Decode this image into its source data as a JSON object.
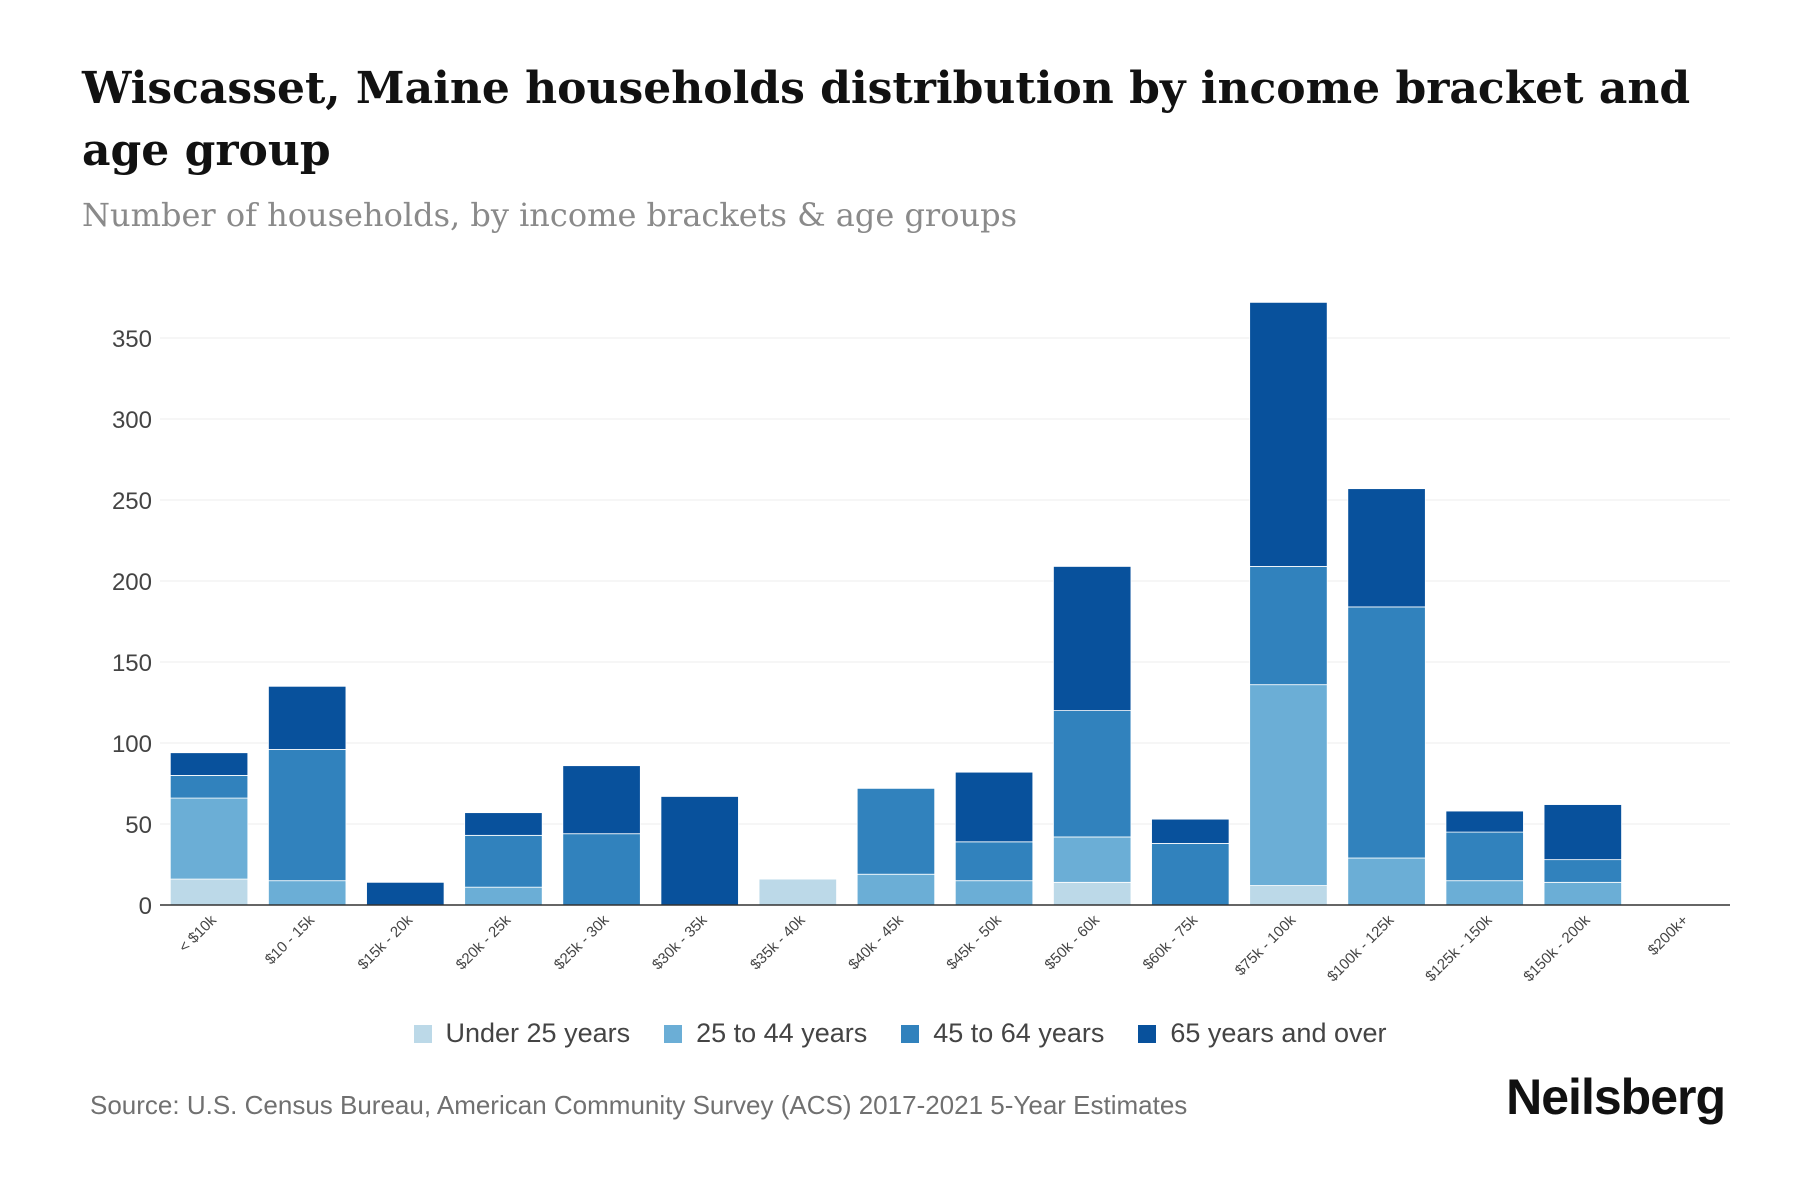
{
  "header": {
    "title": "Wiscasset, Maine households distribution by income bracket and age group",
    "subtitle": "Number of households, by income brackets & age groups"
  },
  "footer": {
    "source": "Source: U.S. Census Bureau, American Community Survey (ACS) 2017-2021 5-Year Estimates",
    "brand": "Neilsberg"
  },
  "chart_data": {
    "type": "bar",
    "stacked": true,
    "title": "Wiscasset, Maine households distribution by income bracket and age group",
    "subtitle": "Number of households, by income brackets & age groups",
    "xlabel": "",
    "ylabel": "",
    "ylim": [
      0,
      350
    ],
    "yticks": [
      0,
      50,
      100,
      150,
      200,
      250,
      300,
      350
    ],
    "grid": true,
    "legend_position": "bottom",
    "categories": [
      "< $10k",
      "$10 - 15k",
      "$15k - 20k",
      "$20k - 25k",
      "$25k - 30k",
      "$30k - 35k",
      "$35k - 40k",
      "$40k - 45k",
      "$45k - 50k",
      "$50k - 60k",
      "$60k - 75k",
      "$75k - 100k",
      "$100k - 125k",
      "$125k - 150k",
      "$150k - 200k",
      "$200k+"
    ],
    "series": [
      {
        "name": "Under 25 years",
        "color": "#bcd9e8",
        "values": [
          16,
          0,
          0,
          0,
          0,
          0,
          16,
          0,
          0,
          14,
          0,
          12,
          0,
          0,
          0,
          0
        ]
      },
      {
        "name": "25 to 44 years",
        "color": "#6baed6",
        "values": [
          50,
          15,
          0,
          11,
          0,
          0,
          0,
          19,
          15,
          28,
          0,
          124,
          29,
          15,
          14,
          0
        ]
      },
      {
        "name": "45 to 64 years",
        "color": "#3182bd",
        "values": [
          14,
          81,
          0,
          32,
          44,
          0,
          0,
          53,
          24,
          78,
          38,
          73,
          155,
          30,
          14,
          0
        ]
      },
      {
        "name": "65 years and over",
        "color": "#08519c",
        "values": [
          14,
          39,
          14,
          14,
          42,
          67,
          0,
          0,
          43,
          89,
          15,
          163,
          73,
          13,
          34,
          0
        ]
      }
    ]
  }
}
